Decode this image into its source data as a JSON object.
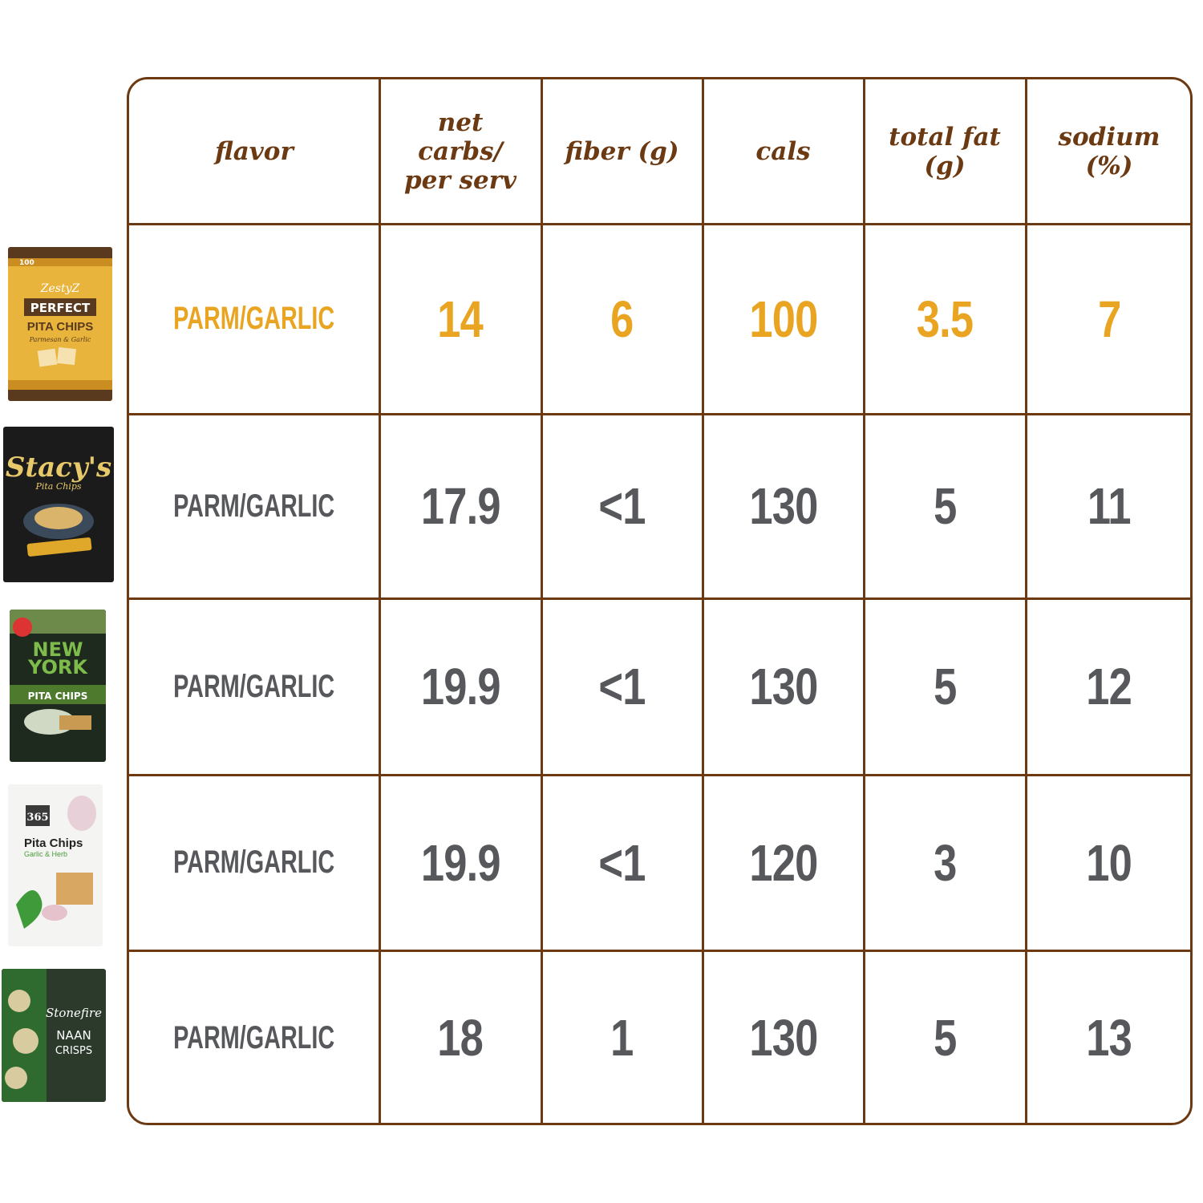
{
  "columns": [
    "flavor",
    "net\ncarbs/\nper serv",
    "fiber (g)",
    "cals",
    "total fat\n(g)",
    "sodium\n(%)"
  ],
  "colors": {
    "border": "#6b3a13",
    "header_text": "#6b3a13",
    "highlight": "#e9a521",
    "value_text": "#57585b"
  },
  "chart_data": {
    "type": "table",
    "columns": [
      "flavor",
      "net carbs/ per serv",
      "fiber (g)",
      "cals",
      "total fat (g)",
      "sodium (%)"
    ],
    "rows": [
      {
        "product_icon": "zesty-z-perfect-pita-chips-bag-icon",
        "highlighted": true,
        "cells": [
          "PARM/GARLIC",
          "14",
          "6",
          "100",
          "3.5",
          "7"
        ]
      },
      {
        "product_icon": "stacys-pita-chips-bag-icon",
        "highlighted": false,
        "cells": [
          "PARM/GARLIC",
          "17.9",
          "<1",
          "130",
          "5",
          "11"
        ]
      },
      {
        "product_icon": "new-york-style-pita-chips-bag-icon",
        "highlighted": false,
        "cells": [
          "PARM/GARLIC",
          "19.9",
          "<1",
          "130",
          "5",
          "12"
        ]
      },
      {
        "product_icon": "365-pita-chips-bag-icon",
        "highlighted": false,
        "cells": [
          "PARM/GARLIC",
          "19.9",
          "<1",
          "120",
          "3",
          "10"
        ]
      },
      {
        "product_icon": "stonefire-naan-crisps-bag-icon",
        "highlighted": false,
        "cells": [
          "PARM/GARLIC",
          "18",
          "1",
          "130",
          "5",
          "13"
        ]
      }
    ]
  },
  "packages": [
    {
      "icon": "zesty-z-perfect-pita-chips-bag-icon",
      "texts": [
        "100",
        "ZestyZ",
        "PERFECT",
        "PITA CHIPS",
        "Parmesan & Garlic"
      ]
    },
    {
      "icon": "stacys-pita-chips-bag-icon",
      "texts": [
        "Stacy's",
        "Pita Chips"
      ]
    },
    {
      "icon": "new-york-style-pita-chips-bag-icon",
      "texts": [
        "NEW",
        "YORK",
        "PITA CHIPS"
      ]
    },
    {
      "icon": "365-pita-chips-bag-icon",
      "texts": [
        "365",
        "Pita Chips",
        "Garlic & Herb"
      ]
    },
    {
      "icon": "stonefire-naan-crisps-bag-icon",
      "texts": [
        "Stonefire",
        "NAAN",
        "CRISPS"
      ]
    }
  ]
}
